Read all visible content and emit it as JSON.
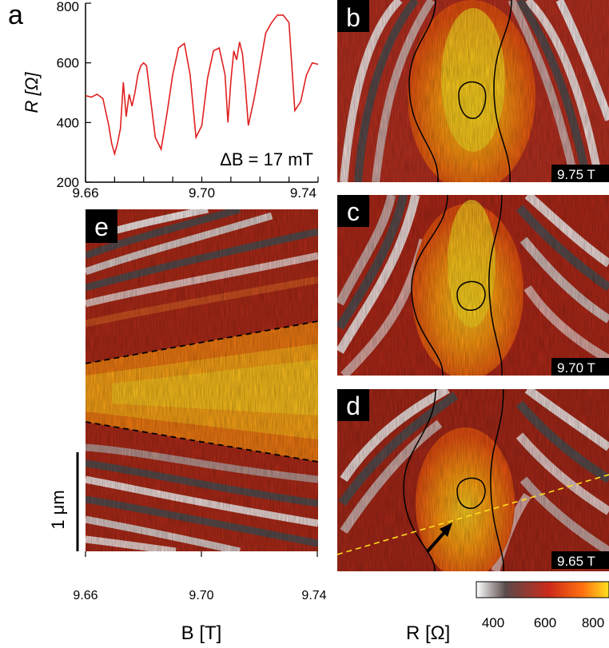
{
  "panels": {
    "a": "a",
    "b": "b",
    "c": "c",
    "d": "d",
    "e": "e"
  },
  "field_labels": {
    "b": "9.75 T",
    "c": "9.70 T",
    "d": "9.65 T"
  },
  "annotation_delta_b": "ΔB = 17 mT",
  "scale_bar_label": "1 μm",
  "bottom_axis": {
    "ticks": [
      "9.66",
      "9.70",
      "9.74"
    ],
    "label": "B [T]"
  },
  "colorbar": {
    "label": "R [Ω]",
    "ticks": [
      "400",
      "600",
      "800"
    ],
    "colors": [
      "#ffffff",
      "#5a4a4a",
      "#cc2a1a",
      "#ff7010",
      "#ffe020"
    ]
  },
  "chart_data": {
    "type": "line",
    "series": [
      {
        "color": "#e02020",
        "x": [
          9.66,
          9.662,
          9.664,
          9.666,
          9.668,
          9.669,
          9.67,
          9.671,
          9.672,
          9.673,
          9.674,
          9.675,
          9.676,
          9.677,
          9.678,
          9.679,
          9.68,
          9.681,
          9.682,
          9.684,
          9.686,
          9.688,
          9.69,
          9.692,
          9.694,
          9.696,
          9.698,
          9.7,
          9.702,
          9.704,
          9.706,
          9.708,
          9.709,
          9.71,
          9.711,
          9.712,
          9.713,
          9.714,
          9.715,
          9.716,
          9.718,
          9.72,
          9.722,
          9.724,
          9.726,
          9.728,
          9.73,
          9.732,
          9.734,
          9.736,
          9.738,
          9.74
        ],
        "y": [
          490,
          485,
          495,
          480,
          390,
          330,
          295,
          330,
          380,
          535,
          420,
          495,
          455,
          500,
          560,
          590,
          600,
          590,
          510,
          350,
          310,
          430,
          560,
          650,
          665,
          560,
          350,
          390,
          550,
          640,
          650,
          560,
          400,
          540,
          640,
          610,
          670,
          630,
          520,
          390,
          480,
          590,
          700,
          735,
          760,
          760,
          735,
          440,
          470,
          560,
          600,
          595
        ]
      }
    ],
    "xlim": [
      9.66,
      9.74
    ],
    "ylim": [
      200,
      800
    ],
    "xticks": [
      "9.66",
      "9.70",
      "9.74"
    ],
    "yticks": [
      "200",
      "400",
      "600",
      "800"
    ],
    "xlabel": "",
    "ylabel": "R [Ω]"
  }
}
